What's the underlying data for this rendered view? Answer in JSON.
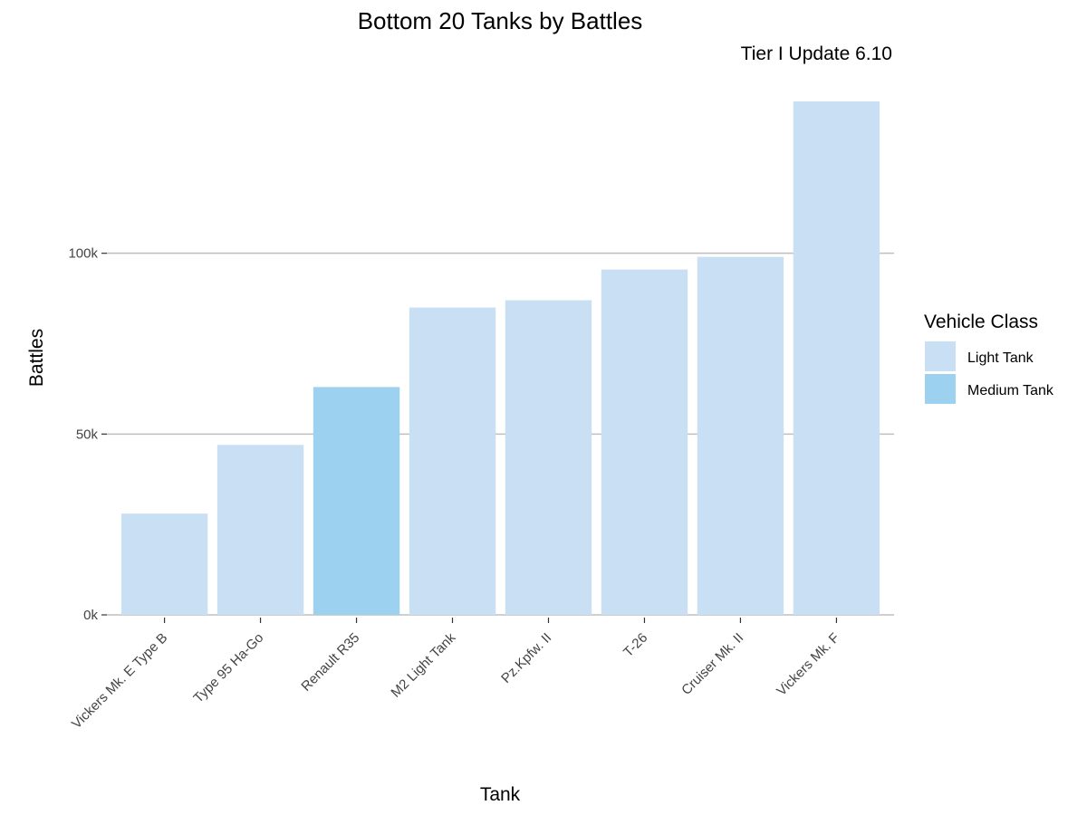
{
  "chart_data": {
    "type": "bar",
    "title": "Bottom 20 Tanks by Battles",
    "subtitle": "Tier I Update 6.10",
    "xlabel": "Tank",
    "ylabel": "Battles",
    "ylim": [
      0,
      150000
    ],
    "yticks": [
      0,
      50000,
      100000
    ],
    "ytick_labels": [
      "0k",
      "50k",
      "100k"
    ],
    "grid": "horizontal major only",
    "categories": [
      "Vickers Mk. E Type B",
      "Type 95 Ha-Go",
      "Renault R35",
      "M2 Light Tank",
      "Pz.Kpfw. II",
      "T-26",
      "Cruiser Mk. II",
      "Vickers Mk. F"
    ],
    "values": [
      28000,
      47000,
      63000,
      85000,
      87000,
      95500,
      99000,
      142000
    ],
    "classes": [
      "Light Tank",
      "Light Tank",
      "Medium Tank",
      "Light Tank",
      "Light Tank",
      "Light Tank",
      "Light Tank",
      "Light Tank"
    ],
    "legend": {
      "title": "Vehicle Class",
      "placement": "right",
      "entries": [
        {
          "label": "Light Tank",
          "color": "#c9dff3"
        },
        {
          "label": "Medium Tank",
          "color": "#9dd1f0"
        }
      ]
    },
    "grid_color": "#bfbfbf"
  }
}
